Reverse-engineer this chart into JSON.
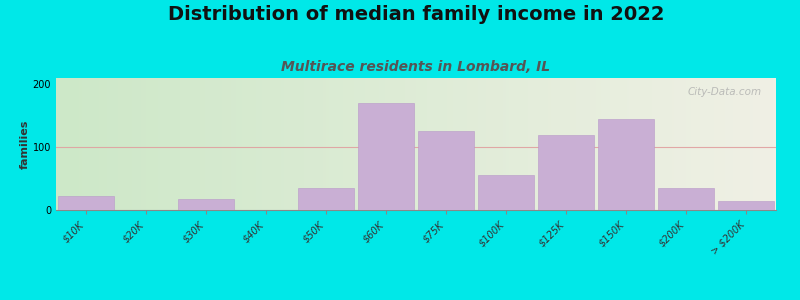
{
  "title": "Distribution of median family income in 2022",
  "subtitle": "Multirace residents in Lombard, IL",
  "ylabel": "families",
  "background_outer": "#00e8e8",
  "background_inner_left": "#cde8c8",
  "background_inner_right": "#f0f0e5",
  "bar_color": "#c9afd4",
  "bar_edge_color": "#b899c8",
  "watermark": "City-Data.com",
  "categories": [
    "$10K",
    "$20K",
    "$30K",
    "$40K",
    "$50K",
    "$60K",
    "$75K",
    "$100K",
    "$125K",
    "$150K",
    "$200K",
    "> $200K"
  ],
  "values": [
    22,
    0,
    18,
    0,
    35,
    170,
    125,
    55,
    120,
    145,
    35,
    15
  ],
  "ylim": [
    0,
    210
  ],
  "yticks": [
    0,
    100,
    200
  ],
  "title_fontsize": 14,
  "subtitle_fontsize": 10,
  "subtitle_color": "#555555",
  "ylabel_fontsize": 8,
  "tick_fontsize": 7,
  "hline_color": "#e0a0a0",
  "hline_y": 100
}
